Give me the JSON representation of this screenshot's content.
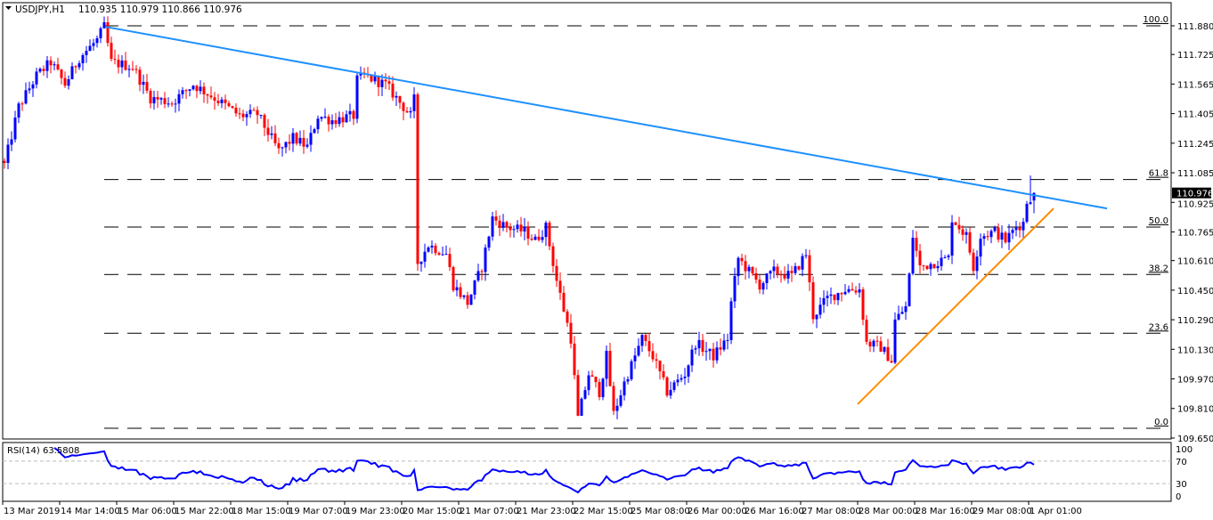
{
  "header": {
    "symbol": "USDJPY,H1",
    "ohlc": "110.935 110.979 110.866 110.976"
  },
  "chart_data": {
    "type": "candlestick",
    "title": "USDJPY,H1",
    "ylim": [
      109.65,
      111.93
    ],
    "price_ticks": [
      "111.880",
      "111.725",
      "111.565",
      "111.405",
      "111.245",
      "111.085",
      "110.925",
      "110.765",
      "110.610",
      "110.450",
      "110.290",
      "110.130",
      "109.970",
      "109.810",
      "109.650"
    ],
    "current_price": "110.976",
    "last_bar": {
      "open": 110.935,
      "high": 110.979,
      "low": 110.866,
      "close": 110.976
    },
    "bar_count": 290,
    "close_path_waypoints": [
      [
        0,
        111.129
      ],
      [
        4,
        111.442
      ],
      [
        9,
        111.61
      ],
      [
        13,
        111.683
      ],
      [
        17,
        111.562
      ],
      [
        21,
        111.707
      ],
      [
        26,
        111.803
      ],
      [
        28,
        111.875
      ],
      [
        30,
        111.683
      ],
      [
        36,
        111.658
      ],
      [
        41,
        111.49
      ],
      [
        47,
        111.466
      ],
      [
        53,
        111.562
      ],
      [
        59,
        111.49
      ],
      [
        66,
        111.393
      ],
      [
        71,
        111.403
      ],
      [
        77,
        111.201
      ],
      [
        81,
        111.273
      ],
      [
        85,
        111.225
      ],
      [
        88,
        111.393
      ],
      [
        92,
        111.369
      ],
      [
        98,
        111.393
      ],
      [
        99,
        111.586
      ],
      [
        101,
        111.61
      ],
      [
        107,
        111.562
      ],
      [
        110,
        111.49
      ],
      [
        114,
        111.393
      ],
      [
        115,
        111.48
      ],
      [
        116,
        110.599
      ],
      [
        119,
        110.695
      ],
      [
        124,
        110.647
      ],
      [
        126,
        110.478
      ],
      [
        130,
        110.382
      ],
      [
        134,
        110.575
      ],
      [
        137,
        110.84
      ],
      [
        141,
        110.791
      ],
      [
        146,
        110.767
      ],
      [
        149,
        110.719
      ],
      [
        152,
        110.791
      ],
      [
        155,
        110.502
      ],
      [
        159,
        110.189
      ],
      [
        161,
        109.756
      ],
      [
        164,
        109.997
      ],
      [
        167,
        109.9
      ],
      [
        169,
        110.093
      ],
      [
        171,
        109.78
      ],
      [
        174,
        109.948
      ],
      [
        179,
        110.189
      ],
      [
        182,
        110.093
      ],
      [
        186,
        109.9
      ],
      [
        191,
        109.997
      ],
      [
        194,
        110.165
      ],
      [
        199,
        110.093
      ],
      [
        203,
        110.189
      ],
      [
        204,
        110.382
      ],
      [
        206,
        110.623
      ],
      [
        212,
        110.478
      ],
      [
        216,
        110.551
      ],
      [
        221,
        110.526
      ],
      [
        225,
        110.647
      ],
      [
        227,
        110.31
      ],
      [
        231,
        110.406
      ],
      [
        236,
        110.454
      ],
      [
        240,
        110.454
      ],
      [
        242,
        110.165
      ],
      [
        246,
        110.141
      ],
      [
        249,
        110.069
      ],
      [
        250,
        110.286
      ],
      [
        253,
        110.358
      ],
      [
        254,
        110.526
      ],
      [
        255,
        110.743
      ],
      [
        257,
        110.575
      ],
      [
        261,
        110.599
      ],
      [
        265,
        110.623
      ],
      [
        266,
        110.84
      ],
      [
        270,
        110.743
      ],
      [
        272,
        110.575
      ],
      [
        274,
        110.743
      ],
      [
        278,
        110.767
      ],
      [
        281,
        110.719
      ],
      [
        284,
        110.791
      ],
      [
        286,
        110.815
      ],
      [
        287,
        110.93
      ],
      [
        289,
        110.976
      ]
    ],
    "fibonacci": {
      "low": 109.703,
      "high": 111.88,
      "start_bar": 28,
      "levels": [
        {
          "ratio": 1.0,
          "label": "100.0"
        },
        {
          "ratio": 0.618,
          "label": "61.8"
        },
        {
          "ratio": 0.5,
          "label": "50.0"
        },
        {
          "ratio": 0.382,
          "label": "38.2"
        },
        {
          "ratio": 0.236,
          "label": "23.6"
        },
        {
          "ratio": 0.0,
          "label": "0.0"
        }
      ]
    },
    "trendlines": [
      {
        "name": "resistance",
        "color": "#1e90ff",
        "from": [
          28.25,
          111.875
        ],
        "to": [
          309.5,
          110.892
        ]
      },
      {
        "name": "support",
        "color": "#ff8c00",
        "from": [
          239.5,
          109.833
        ],
        "to": [
          294.5,
          110.892
        ]
      }
    ],
    "colors": {
      "bull": "#0000ff",
      "bear": "#ff0000",
      "rsi": "#0000ff",
      "current_tag_bg": "#000000"
    },
    "x_labels": [
      "13 Mar 2019",
      "14 Mar 14:00",
      "15 Mar 06:00",
      "15 Mar 22:00",
      "18 Mar 15:00",
      "19 Mar 07:00",
      "19 Mar 23:00",
      "20 Mar 15:00",
      "21 Mar 07:00",
      "21 Mar 23:00",
      "22 Mar 15:00",
      "25 Mar 08:00",
      "26 Mar 00:00",
      "26 Mar 16:00",
      "27 Mar 08:00",
      "28 Mar 00:00",
      "28 Mar 16:00",
      "29 Mar 08:00",
      "1 Apr 01:00"
    ],
    "rsi": {
      "label": "RSI(14) 63.5808",
      "period": 14,
      "value": 63.5808,
      "levels": [
        70,
        30
      ],
      "ticks": [
        "100",
        "70",
        "30",
        "0"
      ],
      "ylim": [
        0,
        100
      ]
    }
  }
}
